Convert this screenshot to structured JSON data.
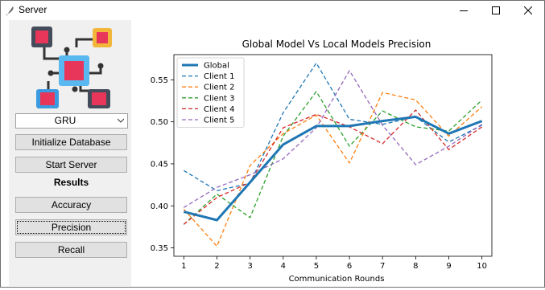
{
  "window": {
    "title": "Server",
    "icon": "feather-icon"
  },
  "sidebar": {
    "combo": {
      "selected": "GRU"
    },
    "buttons": {
      "init_db": "Initialize Database",
      "start_server": "Start Server",
      "accuracy": "Accuracy",
      "precision": "Precision",
      "recall": "Recall"
    },
    "results_label": "Results"
  },
  "chart_data": {
    "type": "line",
    "title": "Global Model Vs Local Models Precision",
    "xlabel": "Communication Rounds",
    "ylabel": "",
    "x": [
      1,
      2,
      3,
      4,
      5,
      6,
      7,
      8,
      9,
      10
    ],
    "xlim": [
      0.7,
      10.3
    ],
    "ylim": [
      0.34,
      0.58
    ],
    "yticks": [
      0.35,
      0.4,
      0.45,
      0.5,
      0.55
    ],
    "ytick_labels": [
      "0.35",
      "0.40",
      "0.45",
      "0.50",
      "0.55"
    ],
    "xtick_labels": [
      "1",
      "2",
      "3",
      "4",
      "5",
      "6",
      "7",
      "8",
      "9",
      "10"
    ],
    "legend_position": "top-left",
    "series": [
      {
        "name": "Global",
        "color": "#1f77b4",
        "style": "solid",
        "values": [
          0.393,
          0.383,
          0.428,
          0.473,
          0.495,
          0.495,
          0.501,
          0.506,
          0.486,
          0.501
        ]
      },
      {
        "name": "Client 1",
        "color": "#1f77b4",
        "style": "dashed",
        "values": [
          0.442,
          0.418,
          0.427,
          0.511,
          0.57,
          0.503,
          0.497,
          0.506,
          0.476,
          0.496
        ]
      },
      {
        "name": "Client 2",
        "color": "#ff7f0e",
        "style": "dashed",
        "values": [
          0.396,
          0.352,
          0.448,
          0.486,
          0.508,
          0.451,
          0.535,
          0.526,
          0.483,
          0.518
        ]
      },
      {
        "name": "Client 3",
        "color": "#2ca02c",
        "style": "dashed",
        "values": [
          0.378,
          0.414,
          0.386,
          0.483,
          0.536,
          0.471,
          0.513,
          0.494,
          0.489,
          0.526
        ]
      },
      {
        "name": "Client 4",
        "color": "#d62728",
        "style": "dashed",
        "values": [
          0.378,
          0.41,
          0.428,
          0.493,
          0.509,
          0.494,
          0.474,
          0.514,
          0.467,
          0.494
        ]
      },
      {
        "name": "Client 5",
        "color": "#9467bd",
        "style": "dashed",
        "values": [
          0.398,
          0.422,
          0.437,
          0.456,
          0.493,
          0.561,
          0.496,
          0.449,
          0.471,
          0.497
        ]
      }
    ]
  }
}
